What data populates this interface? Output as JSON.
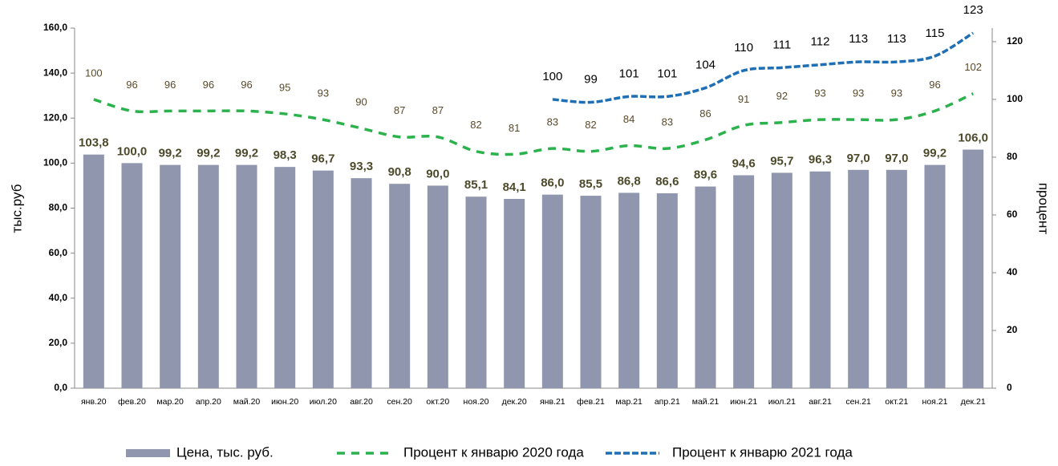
{
  "chart_data": {
    "type": "bar",
    "ylabel": "тыс.руб",
    "y2label": "процент",
    "categories": [
      "янв.20",
      "фев.20",
      "мар.20",
      "апр.20",
      "май.20",
      "июн.20",
      "июл.20",
      "авг.20",
      "сен.20",
      "окт.20",
      "ноя.20",
      "дек.20",
      "янв.21",
      "фев.21",
      "мар.21",
      "апр.21",
      "май.21",
      "июн.21",
      "июл.21",
      "авг.21",
      "сен.21",
      "окт.21",
      "ноя.21",
      "дек.21"
    ],
    "series": [
      {
        "name": "Цена, тыс. руб.",
        "type": "bar",
        "color": "#8f96ad",
        "values": [
          103.8,
          100.0,
          99.2,
          99.2,
          99.2,
          98.3,
          96.7,
          93.3,
          90.8,
          90.0,
          85.1,
          84.1,
          86.0,
          85.5,
          86.8,
          86.6,
          89.6,
          94.6,
          95.7,
          96.3,
          97.0,
          97.0,
          99.2,
          106.0
        ],
        "value_labels": [
          "103,8",
          "100,0",
          "99,2",
          "99,2",
          "99,2",
          "98,3",
          "96,7",
          "93,3",
          "90,8",
          "90,0",
          "85,1",
          "84,1",
          "86,0",
          "85,5",
          "86,8",
          "86,6",
          "89,6",
          "94,6",
          "95,7",
          "96,3",
          "97,0",
          "97,0",
          "99,2",
          "106,0"
        ]
      },
      {
        "name": "Процент к январю 2020 года",
        "type": "line",
        "axis": "y2",
        "color": "#2bb24c",
        "values": [
          100,
          96,
          96,
          96,
          96,
          95,
          93,
          90,
          87,
          87,
          82,
          81,
          83,
          82,
          84,
          83,
          86,
          91,
          92,
          93,
          93,
          93,
          96,
          102
        ]
      },
      {
        "name": "Процент к январю 2021 года",
        "type": "line",
        "axis": "y2",
        "color": "#1f6fb5",
        "values": [
          null,
          null,
          null,
          null,
          null,
          null,
          null,
          null,
          null,
          null,
          null,
          null,
          100,
          99,
          101,
          101,
          104,
          110,
          111,
          112,
          113,
          113,
          115,
          123
        ]
      }
    ],
    "ylim": [
      0,
      160
    ],
    "yticks": [
      {
        "value": 0,
        "label": "0,0"
      },
      {
        "value": 20,
        "label": "20,0"
      },
      {
        "value": 40,
        "label": "40,0"
      },
      {
        "value": 60,
        "label": "60,0"
      },
      {
        "value": 80,
        "label": "80,0"
      },
      {
        "value": 100,
        "label": "100,0"
      },
      {
        "value": 120,
        "label": "120,0"
      },
      {
        "value": 140,
        "label": "140,0"
      },
      {
        "value": 160,
        "label": "160,0"
      }
    ],
    "y2lim": [
      0,
      124.7
    ],
    "y2ticks": [
      0,
      20,
      40,
      60,
      80,
      100,
      120
    ],
    "legend": "bottom"
  }
}
